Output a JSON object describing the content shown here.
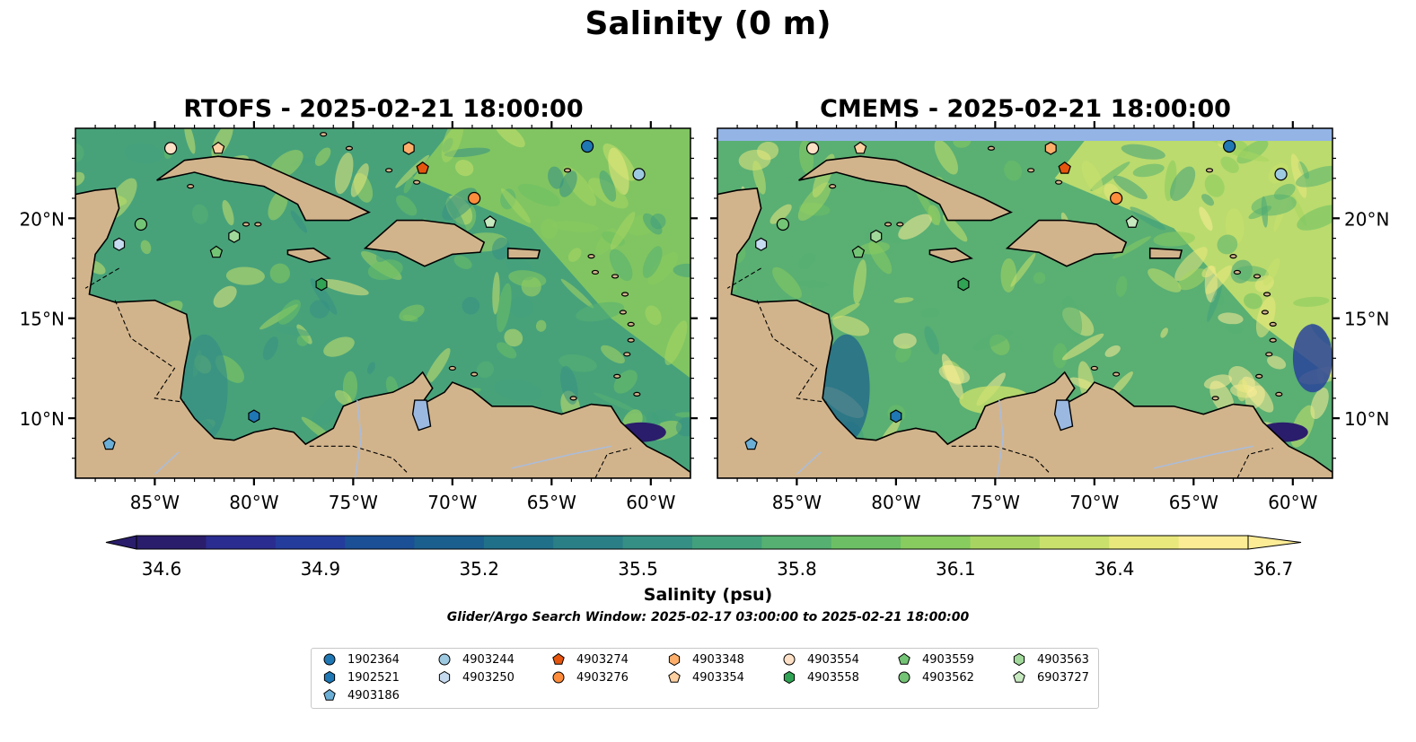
{
  "chart_data": {
    "type": "heatmap",
    "title": "Salinity (0 m)",
    "panels": [
      {
        "title": "RTOFS - 2025-02-21 18:00:00",
        "model": "RTOFS"
      },
      {
        "title": "CMEMS - 2025-02-21 18:00:00",
        "model": "CMEMS"
      }
    ],
    "lon_range": [
      -89,
      -58
    ],
    "lat_range": [
      7,
      24.5
    ],
    "x_ticks": [
      "85°W",
      "80°W",
      "75°W",
      "70°W",
      "65°W",
      "60°W"
    ],
    "x_tick_values": [
      -85,
      -80,
      -75,
      -70,
      -65,
      -60
    ],
    "y_ticks": [
      "20°N",
      "15°N",
      "10°N"
    ],
    "y_tick_values": [
      20,
      15,
      10
    ],
    "colorbar": {
      "label": "Salinity (psu)",
      "min": 34.6,
      "max": 36.7,
      "ticks": [
        "34.6",
        "34.9",
        "35.2",
        "35.5",
        "35.8",
        "36.1",
        "36.4",
        "36.7"
      ],
      "tick_values": [
        34.6,
        34.9,
        35.2,
        35.5,
        35.8,
        36.1,
        36.4,
        36.7
      ],
      "extend": "both"
    },
    "subtitle": "Glider/Argo Search Window: 2025-02-17 03:00:00 to 2025-02-21 18:00:00",
    "floats": [
      {
        "id": "1902364",
        "marker": "circle",
        "color": "#1f77b4",
        "lon": -63.2,
        "lat": 23.6
      },
      {
        "id": "1902521",
        "marker": "hexagon",
        "color": "#1f77b4",
        "lon": -80.0,
        "lat": 10.1
      },
      {
        "id": "4903186",
        "marker": "pentagon",
        "color": "#6baed6",
        "lon": -87.3,
        "lat": 8.7
      },
      {
        "id": "4903244",
        "marker": "circle",
        "color": "#9ecae1",
        "lon": -60.6,
        "lat": 22.2
      },
      {
        "id": "4903250",
        "marker": "hexagon",
        "color": "#c6dbef",
        "lon": -86.8,
        "lat": 18.7
      },
      {
        "id": "4903274",
        "marker": "pentagon",
        "color": "#e6550d",
        "lon": -71.5,
        "lat": 22.5
      },
      {
        "id": "4903276",
        "marker": "circle",
        "color": "#fd8d3c",
        "lon": -68.9,
        "lat": 21.0
      },
      {
        "id": "4903348",
        "marker": "hexagon",
        "color": "#fdae6b",
        "lon": -72.2,
        "lat": 23.5
      },
      {
        "id": "4903354",
        "marker": "pentagon",
        "color": "#fdd0a2",
        "lon": -81.8,
        "lat": 23.5
      },
      {
        "id": "4903554",
        "marker": "circle",
        "color": "#fde0c5",
        "lon": -84.2,
        "lat": 23.5
      },
      {
        "id": "4903558",
        "marker": "hexagon",
        "color": "#31a354",
        "lon": -76.6,
        "lat": 16.7
      },
      {
        "id": "4903559",
        "marker": "pentagon",
        "color": "#74c476",
        "lon": -81.9,
        "lat": 18.3
      },
      {
        "id": "4903562",
        "marker": "circle",
        "color": "#74c476",
        "lon": -85.7,
        "lat": 19.7
      },
      {
        "id": "4903563",
        "marker": "hexagon",
        "color": "#a1d99b",
        "lon": -81.0,
        "lat": 19.1
      },
      {
        "id": "6903727",
        "marker": "pentagon",
        "color": "#c7e9c0",
        "lon": -68.1,
        "lat": 19.8
      }
    ]
  },
  "colors": {
    "land": "#d2b48c",
    "lake": "#9ab8e0",
    "nodata_band": "#94b4e6",
    "colormap": [
      "#2a1d6b",
      "#2b2c8f",
      "#243c9c",
      "#1b4f96",
      "#1a5f8e",
      "#20708a",
      "#2a7f87",
      "#358f84",
      "#42a07c",
      "#55b071",
      "#6cbf64",
      "#88cb5e",
      "#a8d561",
      "#c9e06c",
      "#e9e87d",
      "#fcec96"
    ]
  }
}
